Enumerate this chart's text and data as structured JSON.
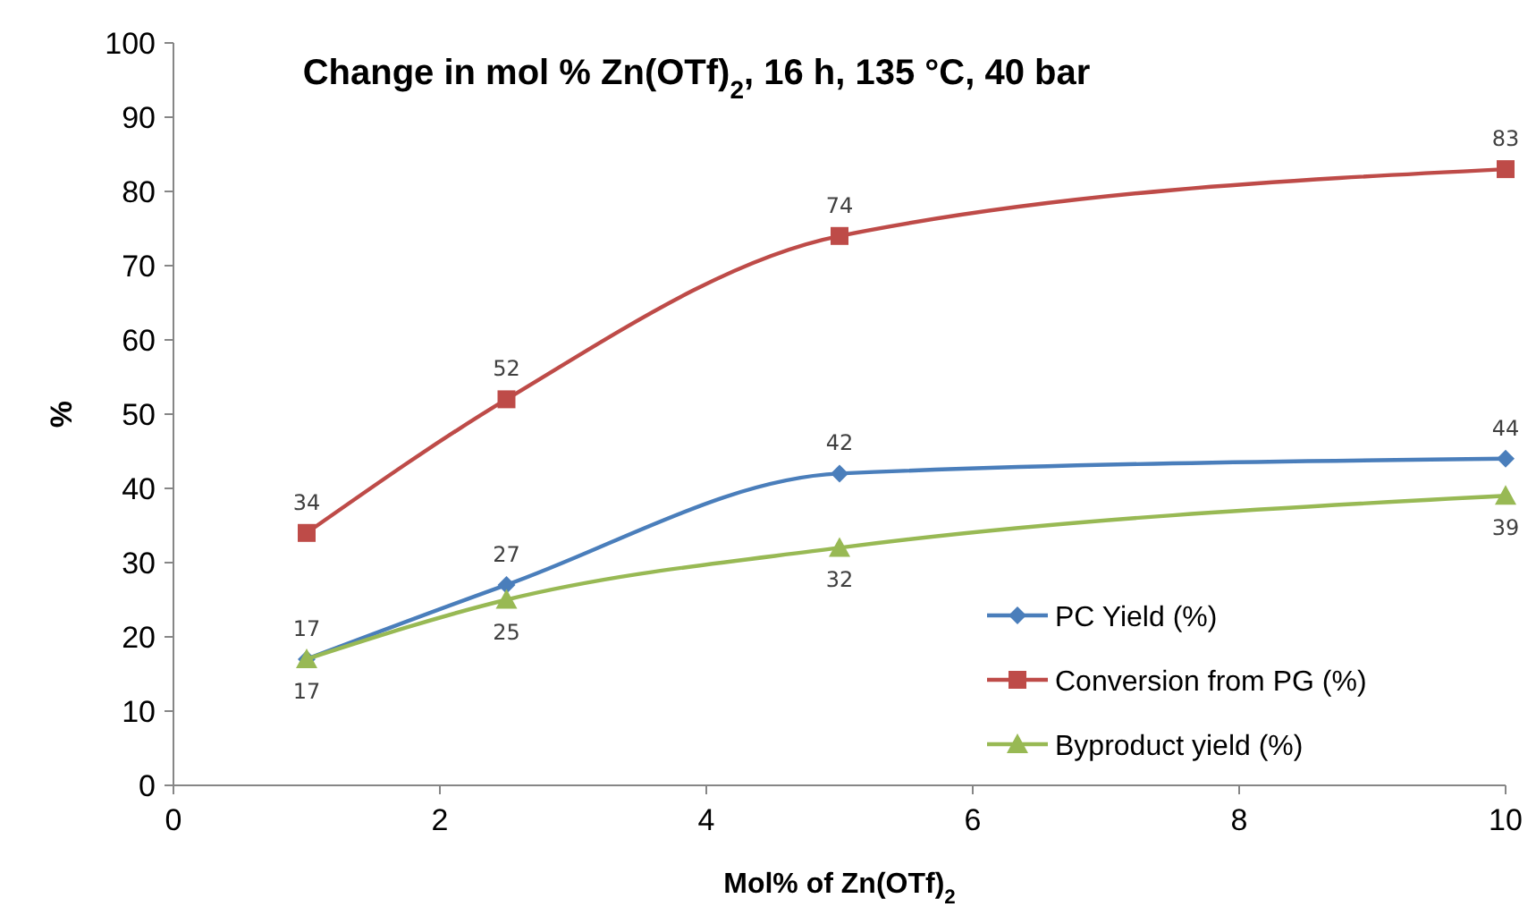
{
  "chart_data": {
    "type": "line",
    "title": "Change in mol % Zn(OTf)$_{2}$, 16 h, 135 °C, 40 bar",
    "xlabel": "Mol% of Zn(OTf)$_{2}$",
    "ylabel": "%",
    "x": [
      1,
      2.5,
      5,
      10
    ],
    "series": [
      {
        "name": "PC Yield (%)",
        "color": "#4a7ebb",
        "marker": "diamond",
        "values": [
          17,
          27,
          42,
          44
        ]
      },
      {
        "name": "Conversion from PG (%)",
        "color": "#be4b48",
        "marker": "square",
        "values": [
          34,
          52,
          74,
          83
        ]
      },
      {
        "name": "Byproduct yield (%)",
        "color": "#98b954",
        "marker": "triangle",
        "values": [
          17,
          25,
          32,
          39
        ]
      }
    ],
    "xlim": [
      0,
      10
    ],
    "xticks": [
      0,
      2,
      4,
      6,
      8,
      10
    ],
    "ylim": [
      0,
      100
    ],
    "yticks": [
      0,
      10,
      20,
      30,
      40,
      50,
      60,
      70,
      80,
      90,
      100
    ],
    "grid": false,
    "legend": "bottom right",
    "data_labels": true,
    "line_style": "solid"
  }
}
